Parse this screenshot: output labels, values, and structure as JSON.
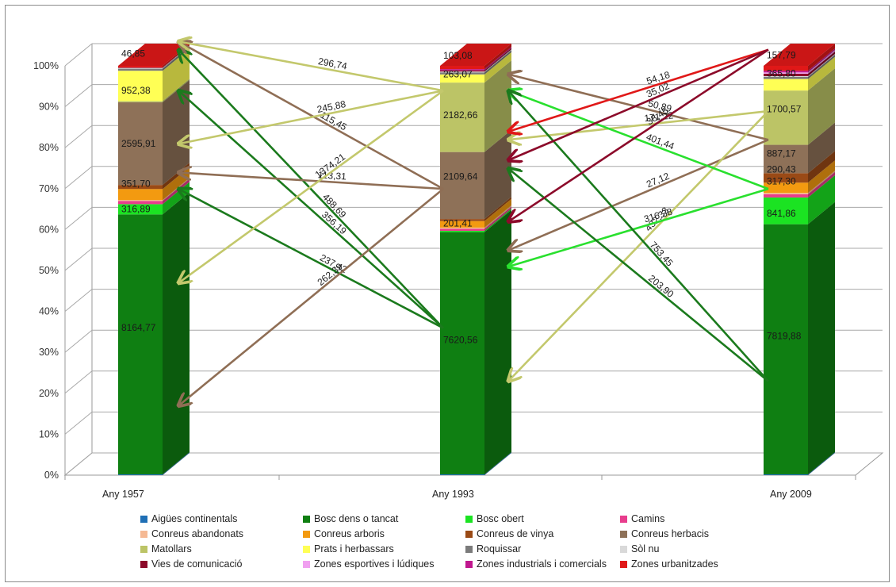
{
  "chart_data": {
    "type": "bar",
    "stacked": true,
    "percent": true,
    "three_d": true,
    "categories": [
      "Any 1957",
      "Any 1993",
      "Any 2009"
    ],
    "y_axis": {
      "ticks": [
        "0%",
        "10%",
        "20%",
        "30%",
        "40%",
        "50%",
        "60%",
        "70%",
        "80%",
        "90%",
        "100%"
      ],
      "ylim": [
        0,
        100
      ],
      "grid": true
    },
    "legend_position": "bottom",
    "series": [
      {
        "name": "Aigües continentals",
        "color": "#1f6fb5",
        "values": [
          0.2,
          0.2,
          0.2
        ]
      },
      {
        "name": "Bosc dens o tancat",
        "color": "#0f7f12",
        "values": [
          63.5,
          59.3,
          60.8
        ]
      },
      {
        "name": "Bosc obert",
        "color": "#1be322",
        "values": [
          2.5,
          0.3,
          6.5
        ]
      },
      {
        "name": "Camins",
        "color": "#e83d8d",
        "values": [
          0.8,
          0.5,
          0.8
        ]
      },
      {
        "name": "Conreus abandonats",
        "color": "#f5b994",
        "values": [
          0.2,
          0.3,
          0.3
        ]
      },
      {
        "name": "Conreus arboris",
        "color": "#f39a10",
        "values": [
          2.7,
          1.6,
          2.5
        ]
      },
      {
        "name": "Conreus de vinya",
        "color": "#9a4a16",
        "values": [
          1.0,
          0.5,
          2.3
        ]
      },
      {
        "name": "Conreus herbacis",
        "color": "#8e7158",
        "values": [
          20.2,
          16.4,
          6.9
        ]
      },
      {
        "name": "Matollars",
        "color": "#bcc466",
        "values": [
          0.3,
          17.0,
          13.2
        ]
      },
      {
        "name": "Prats i herbassars",
        "color": "#ffff55",
        "values": [
          7.4,
          2.0,
          2.8
        ]
      },
      {
        "name": "Roquissar",
        "color": "#7b7b7b",
        "values": [
          0.5,
          0.5,
          0.5
        ]
      },
      {
        "name": "Sòl nu",
        "color": "#d9d9d9",
        "values": [
          0.2,
          0.2,
          0.2
        ]
      },
      {
        "name": "Vies de comunicació",
        "color": "#8c0a2a",
        "values": [
          0.1,
          0.3,
          0.6
        ]
      },
      {
        "name": "Zones esportives i lúdiques",
        "color": "#f0a0f0",
        "values": [
          0.0,
          0.0,
          0.3
        ]
      },
      {
        "name": "Zones industrials i comercials",
        "color": "#c0178e",
        "values": [
          0.0,
          0.3,
          0.4
        ]
      },
      {
        "name": "Zones urbanitzades",
        "color": "#e01818",
        "values": [
          0.4,
          0.8,
          1.2
        ]
      }
    ],
    "segment_labels": [
      {
        "bar": 0,
        "text": "8164,77",
        "y": 36
      },
      {
        "bar": 0,
        "text": "316,89",
        "y": 65
      },
      {
        "bar": 0,
        "text": "351,70",
        "y": 71.2
      },
      {
        "bar": 0,
        "text": "2595,91",
        "y": 81
      },
      {
        "bar": 0,
        "text": "952,38",
        "y": 94
      },
      {
        "bar": 0,
        "text": "46,85",
        "y": 103
      },
      {
        "bar": 1,
        "text": "7620,56",
        "y": 33
      },
      {
        "bar": 1,
        "text": "201,41",
        "y": 61.5
      },
      {
        "bar": 1,
        "text": "2109,64",
        "y": 73
      },
      {
        "bar": 1,
        "text": "2182,66",
        "y": 88
      },
      {
        "bar": 1,
        "text": "263,07",
        "y": 98
      },
      {
        "bar": 1,
        "text": "103,08",
        "y": 102.5
      },
      {
        "bar": 2,
        "text": "7819,88",
        "y": 34
      },
      {
        "bar": 2,
        "text": "841,86",
        "y": 64
      },
      {
        "bar": 2,
        "text": "317,30",
        "y": 71.8
      },
      {
        "bar": 2,
        "text": "290,43",
        "y": 74.7
      },
      {
        "bar": 2,
        "text": "887,17",
        "y": 78.6
      },
      {
        "bar": 2,
        "text": "1700,57",
        "y": 89.4
      },
      {
        "bar": 2,
        "text": "365,80",
        "y": 98.2
      },
      {
        "bar": 2,
        "text": "157,79",
        "y": 102.6
      }
    ],
    "flows": [
      {
        "from": 1,
        "from_y": 34,
        "to": 0,
        "to_y": 102,
        "value": "488,69",
        "color": "#1b7a1d"
      },
      {
        "from": 1,
        "from_y": 34,
        "to": 0,
        "to_y": 92,
        "value": "356,19",
        "color": "#1b7a1d"
      },
      {
        "from": 1,
        "from_y": 34,
        "to": 0,
        "to_y": 68,
        "value": "237,42",
        "color": "#1b7a1d"
      },
      {
        "from": 1,
        "from_y": 68,
        "to": 0,
        "to_y": 104,
        "value": "115,45",
        "color": "#8f6e55"
      },
      {
        "from": 1,
        "from_y": 68,
        "to": 0,
        "to_y": 72,
        "value": "113,31",
        "color": "#8f6e55"
      },
      {
        "from": 1,
        "from_y": 68,
        "to": 0,
        "to_y": 15,
        "value": "262,39",
        "color": "#8f6e55"
      },
      {
        "from": 1,
        "from_y": 92,
        "to": 0,
        "to_y": 104,
        "value": "296,74",
        "color": "#c3c86c"
      },
      {
        "from": 1,
        "from_y": 92,
        "to": 0,
        "to_y": 79,
        "value": "245,88",
        "color": "#c3c86c"
      },
      {
        "from": 1,
        "from_y": 92,
        "to": 0,
        "to_y": 45,
        "value": "1374,21",
        "color": "#c3c86c"
      },
      {
        "from": 2,
        "from_y": 80,
        "to": 1,
        "to_y": 96,
        "value": "50,89",
        "color": "#8f6e55"
      },
      {
        "from": 2,
        "from_y": 80,
        "to": 1,
        "to_y": 53,
        "value": "27,12",
        "color": "#8f6e55"
      },
      {
        "from": 2,
        "from_y": 87,
        "to": 1,
        "to_y": 80,
        "value": "171,22",
        "color": "#c3c86c"
      },
      {
        "from": 2,
        "from_y": 87,
        "to": 1,
        "to_y": 21,
        "value": "432,33",
        "color": "#c3c86c"
      },
      {
        "from": 2,
        "from_y": 68,
        "to": 1,
        "to_y": 92,
        "value": "401,44",
        "color": "#29e02e"
      },
      {
        "from": 2,
        "from_y": 68,
        "to": 1,
        "to_y": 49,
        "value": "316,38",
        "color": "#29e02e"
      },
      {
        "from": 2,
        "from_y": 21,
        "to": 1,
        "to_y": 92,
        "value": "753,45",
        "color": "#1b7a1d"
      },
      {
        "from": 2,
        "from_y": 21,
        "to": 1,
        "to_y": 73,
        "value": "203,90",
        "color": "#1b7a1d"
      },
      {
        "from": 2,
        "from_y": 102,
        "to": 1,
        "to_y": 82,
        "value": "54,18",
        "color": "#e01818"
      },
      {
        "from": 2,
        "from_y": 102,
        "to": 1,
        "to_y": 75,
        "value": "35,02",
        "color": "#8c0a2a"
      },
      {
        "from": 2,
        "from_y": 102,
        "to": 1,
        "to_y": 60,
        "value": "38,45",
        "color": "#8c0a2a"
      }
    ]
  }
}
